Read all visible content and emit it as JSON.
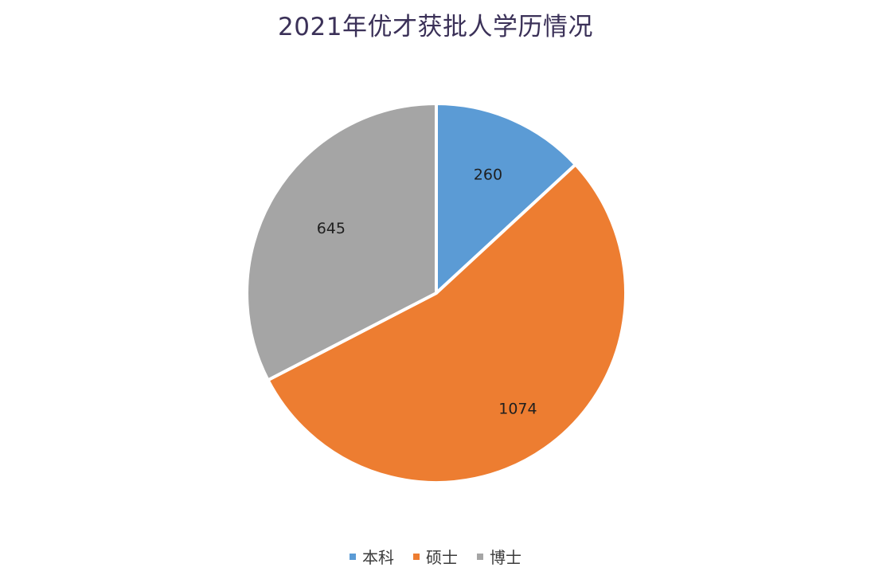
{
  "chart_data": {
    "type": "pie",
    "title": "2021年优才获批人学历情况",
    "categories": [
      "本科",
      "硕士",
      "博士"
    ],
    "values": [
      260,
      1074,
      645
    ],
    "colors": [
      "#5b9bd5",
      "#ed7d31",
      "#a5a5a5"
    ],
    "data_labels": [
      "260",
      "1074",
      "645"
    ],
    "legend_position": "bottom"
  }
}
